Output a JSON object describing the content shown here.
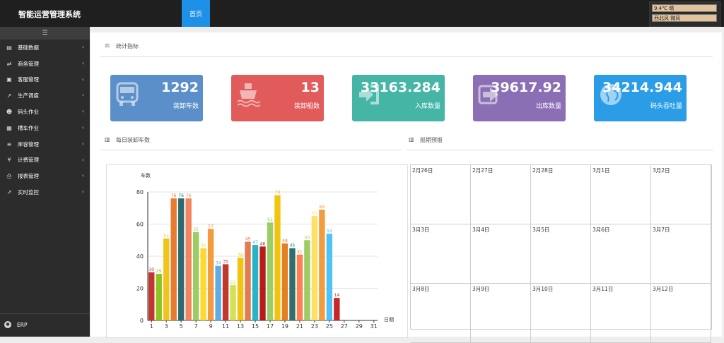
{
  "header": {
    "app_title": "智能运营管理系统",
    "home_tab": "首页",
    "weather_line1": "9.4℃  晴",
    "weather_line2": "西北风  微风"
  },
  "sidebar": {
    "toggle_icon": "menu-icon",
    "items": [
      {
        "label": "基础数据",
        "icon": "file-icon"
      },
      {
        "label": "商务管理",
        "icon": "handshake-icon"
      },
      {
        "label": "客服管理",
        "icon": "document-icon"
      },
      {
        "label": "生产调度",
        "icon": "line-chart-icon"
      },
      {
        "label": "码头作业",
        "icon": "worker-icon"
      },
      {
        "label": "槽车作业",
        "icon": "truck-icon"
      },
      {
        "label": "库容管理",
        "icon": "database-icon"
      },
      {
        "label": "计费管理",
        "icon": "yen-icon"
      },
      {
        "label": "报表管理",
        "icon": "printer-icon"
      },
      {
        "label": "实时监控",
        "icon": "area-chart-icon"
      }
    ],
    "footer_label": "ERP"
  },
  "stats": {
    "title": "统计指标",
    "cards": [
      {
        "value": "1292",
        "label": "装卸车数",
        "color": "#5b8fc9",
        "icon": "bus-icon"
      },
      {
        "value": "13",
        "label": "装卸船数",
        "color": "#e25b5b",
        "icon": "ship-icon"
      },
      {
        "value": "33163.284",
        "label": "入库数量",
        "color": "#45b5a6",
        "icon": "sign-in-icon"
      },
      {
        "value": "39617.92",
        "label": "出库数量",
        "color": "#8a6fb4",
        "icon": "arrow-right-icon"
      },
      {
        "value": "34214.944",
        "label": "码头吞吐量",
        "color": "#2a9de6",
        "icon": "globe-icon"
      }
    ]
  },
  "daily": {
    "title": "每日装卸车数"
  },
  "forecast": {
    "title": "船期预报",
    "dates": [
      "2月26日",
      "2月27日",
      "2月28日",
      "3月1日",
      "3月2日",
      "3月3日",
      "3月4日",
      "3月5日",
      "3月6日",
      "3月7日",
      "3月8日",
      "3月9日",
      "3月10日",
      "3月11日",
      "3月12日"
    ]
  },
  "chart_data": {
    "type": "bar",
    "ylabel": "车数",
    "xlabel": "日期",
    "ylim": [
      0,
      80
    ],
    "yticks": [
      0,
      20,
      40,
      60,
      80
    ],
    "xticks": [
      "1",
      "3",
      "5",
      "7",
      "9",
      "11",
      "13",
      "15",
      "17",
      "19",
      "21",
      "23",
      "25",
      "27",
      "29",
      "31"
    ],
    "categories": [
      1,
      2,
      3,
      4,
      5,
      6,
      7,
      8,
      9,
      10,
      11,
      12,
      13,
      14,
      15,
      16,
      17,
      18,
      19,
      20,
      21,
      22,
      23,
      24,
      25,
      26
    ],
    "values": [
      30,
      29,
      51,
      76,
      76,
      76,
      55,
      45,
      57,
      34,
      35,
      22,
      39,
      49,
      47,
      46,
      61,
      78,
      48,
      45,
      41,
      50,
      65,
      69,
      54,
      14
    ],
    "colors": [
      "#c23531",
      "#8fc31f",
      "#f0c419",
      "#e87b2f",
      "#2d6b73",
      "#f4845f",
      "#9ccc65",
      "#fdd835",
      "#f39c3d",
      "#5dade2",
      "#c0392b",
      "#d4e157",
      "#f1c40f",
      "#e07b53",
      "#26b5c6",
      "#b71c1c",
      "#9ccc65",
      "#f1c40f",
      "#e67e22",
      "#2e6f6f",
      "#ff7f50",
      "#9ccc65",
      "#ffe066",
      "#f39c3d",
      "#4fc3f7",
      "#c62828"
    ],
    "grid": true
  }
}
